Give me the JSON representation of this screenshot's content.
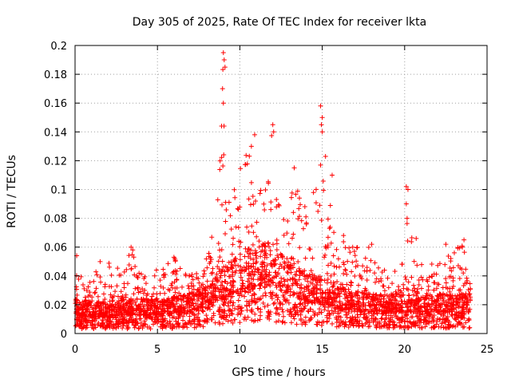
{
  "chart_data": {
    "type": "scatter",
    "title": "Day 305 of 2025, Rate Of TEC Index for receiver lkta",
    "xlabel": "GPS time / hours",
    "ylabel": "ROTI / TECUs",
    "xlim": [
      0,
      25
    ],
    "ylim": [
      0,
      0.2
    ],
    "xticks": [
      "0",
      "5",
      "10",
      "15",
      "20",
      "25"
    ],
    "yticks": [
      "0",
      "0.02",
      "0.04",
      "0.06",
      "0.08",
      "0.1",
      "0.12",
      "0.14",
      "0.16",
      "0.18",
      "0.2"
    ],
    "grid": true,
    "marker": "+",
    "series": [
      {
        "name": "ROTI",
        "color": "#ff0000",
        "envelope_profile": {
          "x": [
            0,
            0.1,
            0.3,
            0.6,
            1.0,
            1.5,
            2.0,
            3.0,
            3.4,
            4.0,
            5.0,
            5.5,
            6.0,
            7.0,
            7.5,
            8.0,
            8.5,
            8.8,
            9.0,
            9.2,
            9.5,
            10.0,
            10.5,
            11.0,
            11.5,
            12.0,
            12.5,
            13.0,
            13.5,
            14.0,
            14.5,
            15.0,
            15.5,
            16.0,
            17.0,
            18.0,
            19.0,
            20.0,
            20.2,
            20.5,
            21.0,
            22.0,
            23.0,
            23.5,
            24.0
          ],
          "peak": [
            0.02,
            0.055,
            0.045,
            0.03,
            0.04,
            0.05,
            0.05,
            0.045,
            0.06,
            0.045,
            0.045,
            0.05,
            0.052,
            0.04,
            0.05,
            0.06,
            0.08,
            0.12,
            0.195,
            0.14,
            0.1,
            0.12,
            0.135,
            0.11,
            0.1,
            0.145,
            0.1,
            0.09,
            0.115,
            0.09,
            0.1,
            0.158,
            0.09,
            0.08,
            0.06,
            0.06,
            0.04,
            0.05,
            0.102,
            0.06,
            0.05,
            0.05,
            0.06,
            0.065,
            0.04
          ],
          "base": [
            0.015,
            0.015,
            0.012,
            0.012,
            0.012,
            0.012,
            0.012,
            0.013,
            0.013,
            0.013,
            0.013,
            0.013,
            0.014,
            0.015,
            0.017,
            0.02,
            0.022,
            0.024,
            0.025,
            0.026,
            0.028,
            0.03,
            0.032,
            0.033,
            0.034,
            0.033,
            0.03,
            0.027,
            0.025,
            0.023,
            0.022,
            0.022,
            0.02,
            0.018,
            0.016,
            0.015,
            0.015,
            0.015,
            0.015,
            0.015,
            0.015,
            0.015,
            0.015,
            0.015,
            0.015
          ]
        },
        "notable_points": [
          {
            "x": 9.0,
            "y": 0.195
          },
          {
            "x": 9.05,
            "y": 0.19
          },
          {
            "x": 9.1,
            "y": 0.185
          },
          {
            "x": 8.95,
            "y": 0.17
          },
          {
            "x": 9.0,
            "y": 0.16
          },
          {
            "x": 12.0,
            "y": 0.145
          },
          {
            "x": 12.05,
            "y": 0.14
          },
          {
            "x": 14.9,
            "y": 0.158
          },
          {
            "x": 15.0,
            "y": 0.15
          },
          {
            "x": 14.95,
            "y": 0.145
          },
          {
            "x": 15.0,
            "y": 0.14
          },
          {
            "x": 14.9,
            "y": 0.117
          },
          {
            "x": 10.9,
            "y": 0.138
          },
          {
            "x": 10.7,
            "y": 0.13
          },
          {
            "x": 13.3,
            "y": 0.115
          },
          {
            "x": 15.6,
            "y": 0.11
          },
          {
            "x": 20.1,
            "y": 0.102
          },
          {
            "x": 20.2,
            "y": 0.1
          },
          {
            "x": 20.1,
            "y": 0.09
          },
          {
            "x": 20.15,
            "y": 0.08
          },
          {
            "x": 20.7,
            "y": 0.066
          },
          {
            "x": 3.4,
            "y": 0.06
          },
          {
            "x": 3.5,
            "y": 0.058
          },
          {
            "x": 0.1,
            "y": 0.054
          },
          {
            "x": 6.0,
            "y": 0.053
          },
          {
            "x": 6.05,
            "y": 0.052
          },
          {
            "x": 23.6,
            "y": 0.065
          },
          {
            "x": 23.5,
            "y": 0.06
          },
          {
            "x": 18.0,
            "y": 0.062
          },
          {
            "x": 22.5,
            "y": 0.062
          }
        ]
      }
    ]
  }
}
